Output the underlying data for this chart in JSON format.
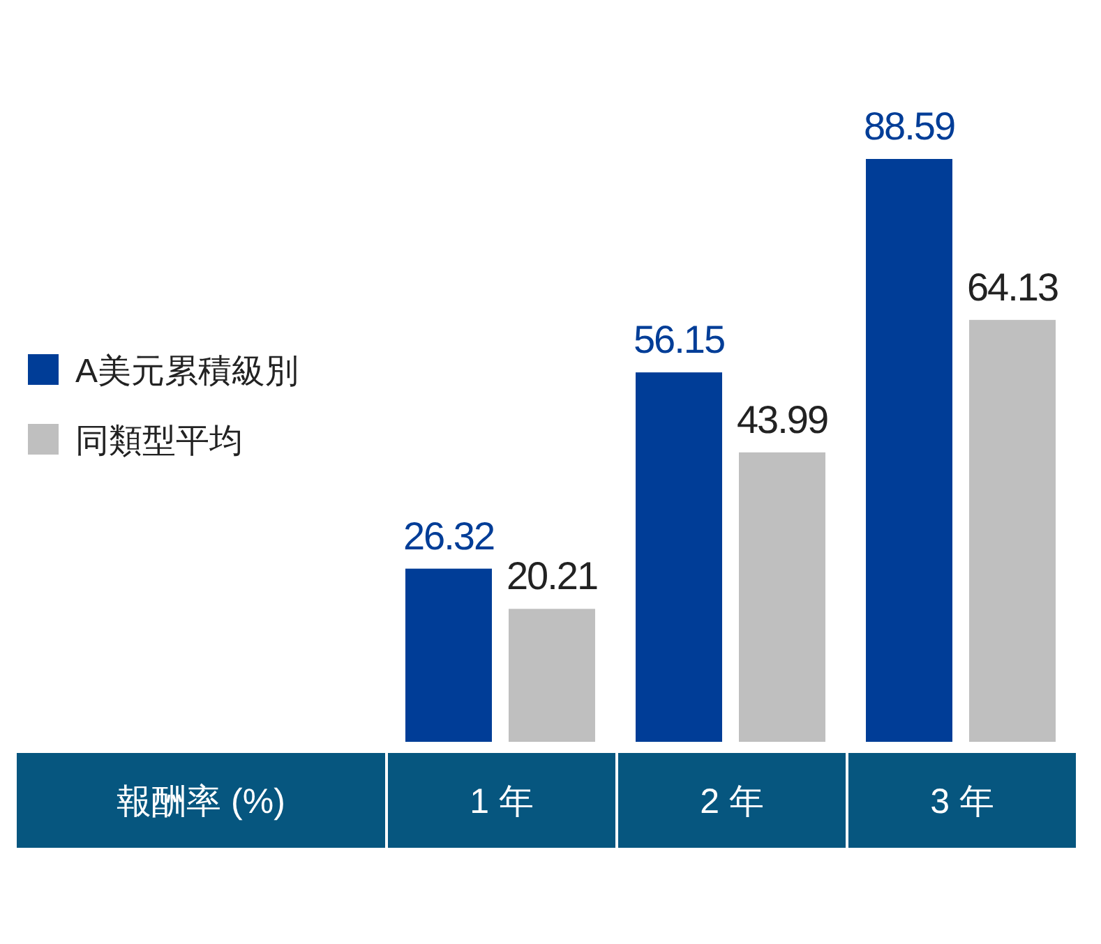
{
  "chart_data": {
    "type": "bar",
    "xlabel": "報酬率 (%)",
    "categories": [
      "1 年",
      "2 年",
      "3 年"
    ],
    "series": [
      {
        "name": "A美元累積級別",
        "color": "#003d97",
        "values": [
          26.32,
          56.15,
          88.59
        ]
      },
      {
        "name": "同類型平均",
        "color": "#bfbfbf",
        "values": [
          20.21,
          43.99,
          64.13
        ]
      }
    ],
    "data_labels": true,
    "legend": "left",
    "grid": false
  }
}
